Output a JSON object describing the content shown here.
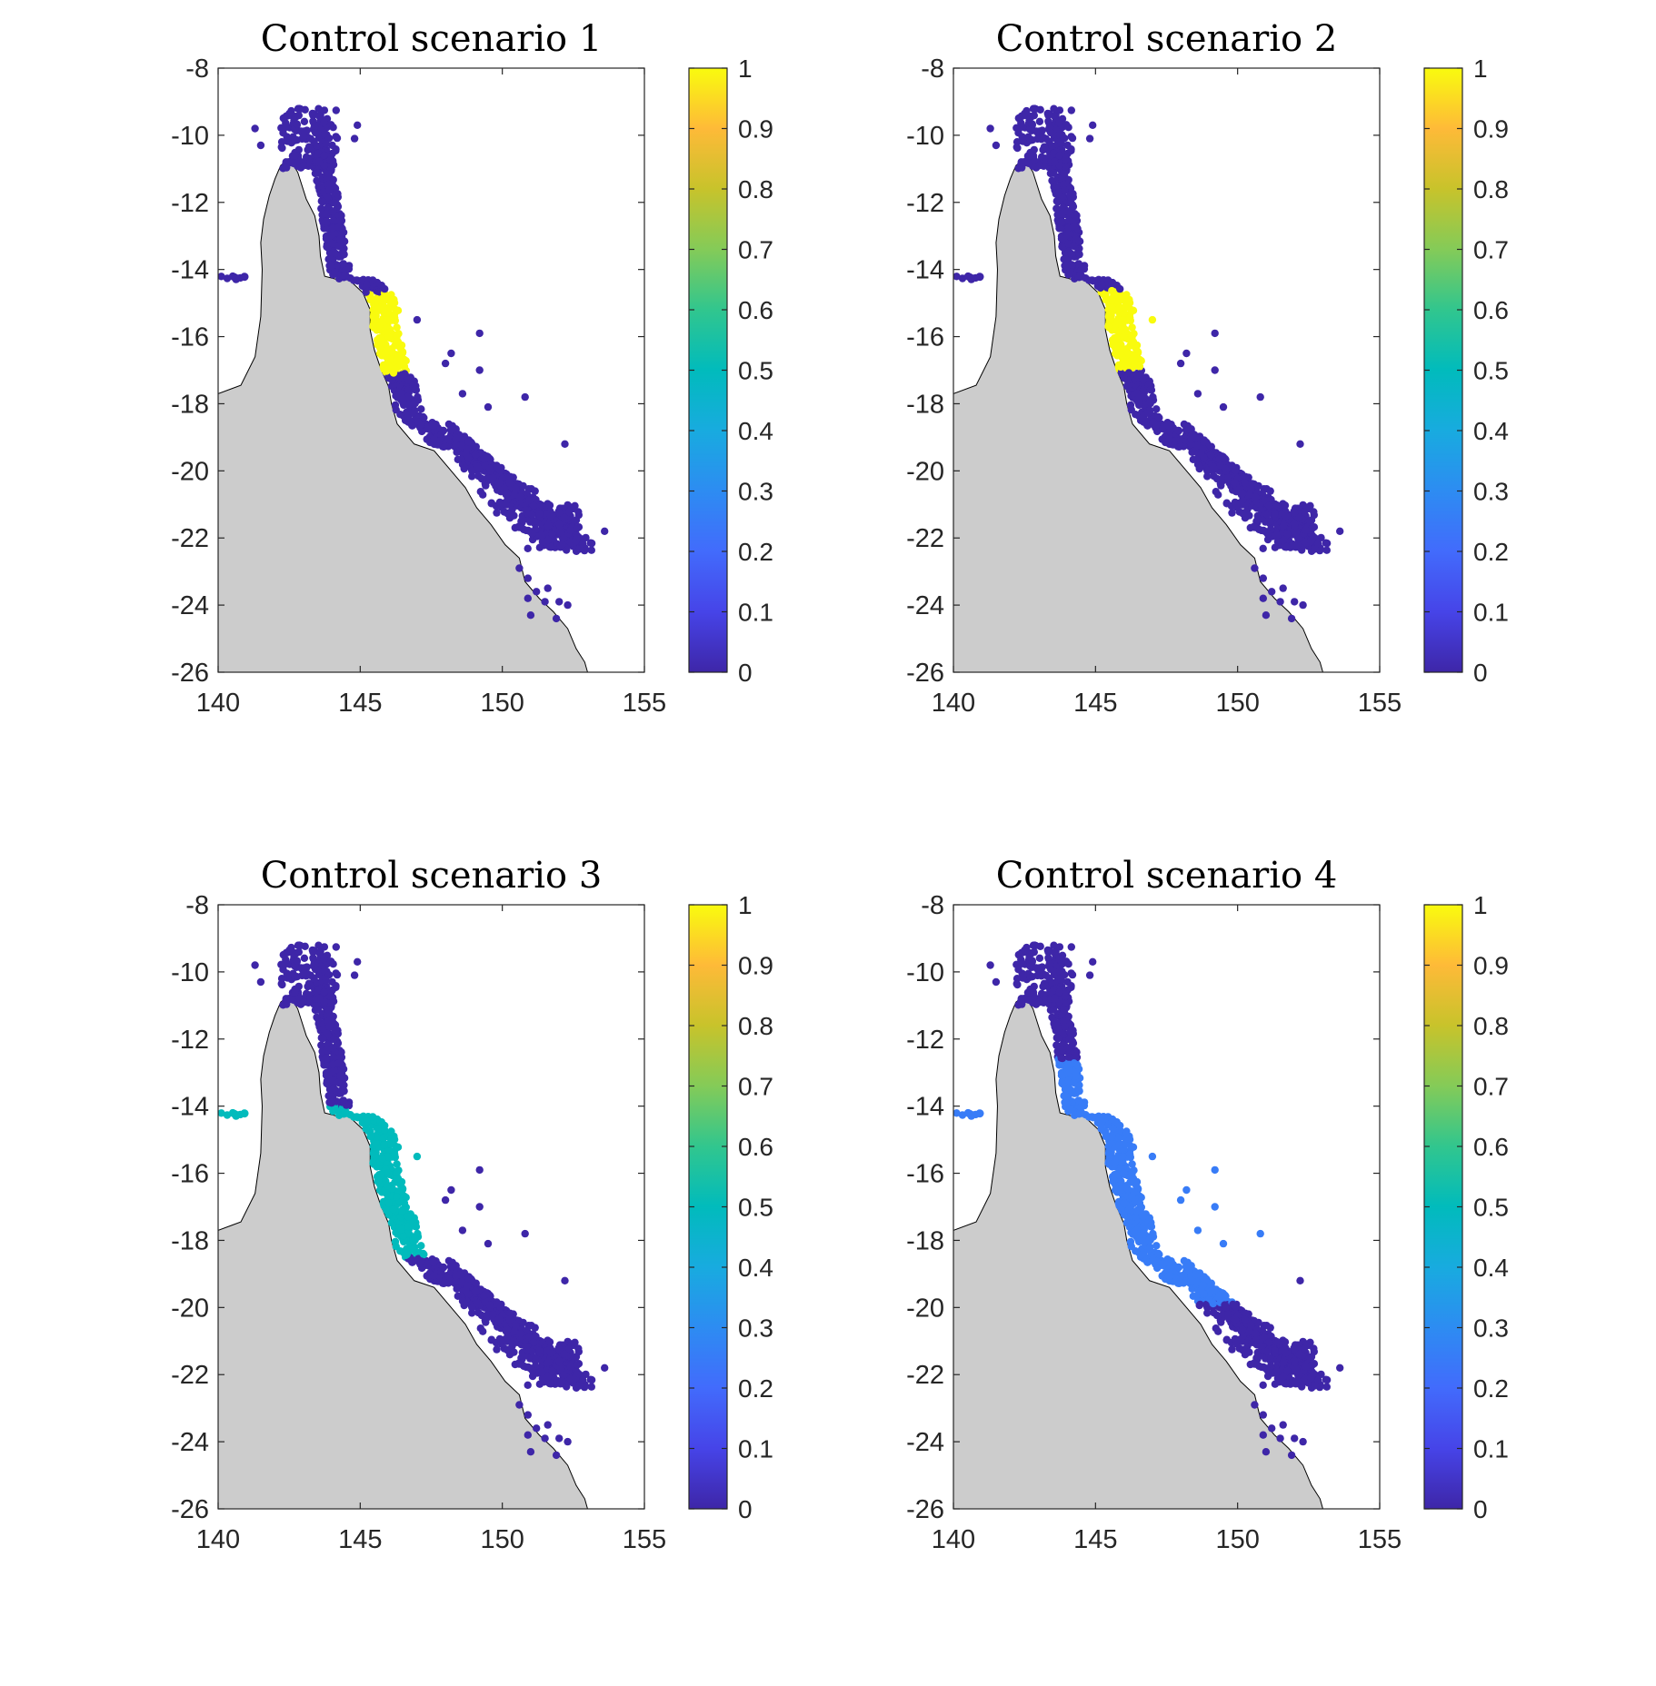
{
  "chart_data": [
    {
      "type": "scatter",
      "title": "Control scenario 1",
      "xlim": [
        140,
        155
      ],
      "ylim": [
        -26,
        -8
      ],
      "x_ticks": [
        "140",
        "145",
        "150",
        "155"
      ],
      "y_ticks": [
        "-8",
        "-10",
        "-12",
        "-14",
        "-16",
        "-18",
        "-20",
        "-22",
        "-24",
        "-26"
      ],
      "colorbar": {
        "range": [
          0,
          1
        ],
        "ticks": [
          "1",
          "0.9",
          "0.8",
          "0.7",
          "0.6",
          "0.5",
          "0.4",
          "0.3",
          "0.2",
          "0.1",
          "0"
        ]
      },
      "highlight": {
        "lat_range": [
          -17.1,
          -14.7
        ],
        "value": 1.0
      },
      "background_value": 0.0
    },
    {
      "type": "scatter",
      "title": "Control scenario 2",
      "xlim": [
        140,
        155
      ],
      "ylim": [
        -26,
        -8
      ],
      "x_ticks": [
        "140",
        "145",
        "150",
        "155"
      ],
      "y_ticks": [
        "-8",
        "-10",
        "-12",
        "-14",
        "-16",
        "-18",
        "-20",
        "-22",
        "-24",
        "-26"
      ],
      "colorbar": {
        "range": [
          0,
          1
        ],
        "ticks": [
          "1",
          "0.9",
          "0.8",
          "0.7",
          "0.6",
          "0.5",
          "0.4",
          "0.3",
          "0.2",
          "0.1",
          "0"
        ]
      },
      "highlight": {
        "lat_range": [
          -17.0,
          -14.6
        ],
        "value": 1.0,
        "extra_points": [
          [
            147.0,
            -15.5
          ]
        ]
      },
      "background_value": 0.0
    },
    {
      "type": "scatter",
      "title": "Control scenario 3",
      "xlim": [
        140,
        155
      ],
      "ylim": [
        -26,
        -8
      ],
      "x_ticks": [
        "140",
        "145",
        "150",
        "155"
      ],
      "y_ticks": [
        "-8",
        "-10",
        "-12",
        "-14",
        "-16",
        "-18",
        "-20",
        "-22",
        "-24",
        "-26"
      ],
      "colorbar": {
        "range": [
          0,
          1
        ],
        "ticks": [
          "1",
          "0.9",
          "0.8",
          "0.7",
          "0.6",
          "0.5",
          "0.4",
          "0.3",
          "0.2",
          "0.1",
          "0"
        ]
      },
      "highlight": {
        "lat_range": [
          -18.5,
          -14.0
        ],
        "value": 0.5,
        "extra_points": [
          [
            147.0,
            -15.5
          ]
        ]
      },
      "background_value": 0.0
    },
    {
      "type": "scatter",
      "title": "Control scenario 4",
      "xlim": [
        140,
        155
      ],
      "ylim": [
        -26,
        -8
      ],
      "x_ticks": [
        "140",
        "145",
        "150",
        "155"
      ],
      "y_ticks": [
        "-8",
        "-10",
        "-12",
        "-14",
        "-16",
        "-18",
        "-20",
        "-22",
        "-24",
        "-26"
      ],
      "colorbar": {
        "range": [
          0,
          1
        ],
        "ticks": [
          "1",
          "0.9",
          "0.8",
          "0.7",
          "0.6",
          "0.5",
          "0.4",
          "0.3",
          "0.2",
          "0.1",
          "0"
        ]
      },
      "highlight": {
        "lat_range": [
          -19.9,
          -12.6
        ],
        "value": 0.25,
        "offshore": true
      },
      "background_value": 0.0
    }
  ],
  "colors": {
    "land": "#cccccc",
    "coast": "#000000",
    "low": "#3e26a8",
    "high": "#f9fb0e"
  }
}
